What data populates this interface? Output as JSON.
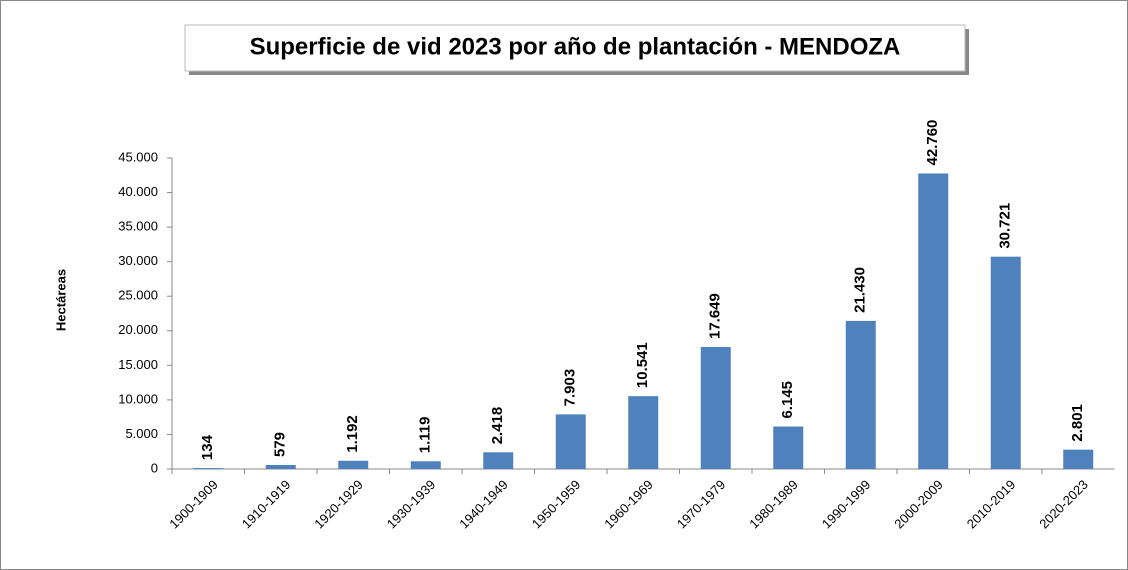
{
  "chart_data": {
    "type": "bar",
    "title": "Superficie de vid 2023 por año de plantación - MENDOZA",
    "y_label": "Hectáreas",
    "categories": [
      "1900-1909",
      "1910-1919",
      "1920-1929",
      "1930-1939",
      "1940-1949",
      "1950-1959",
      "1960-1969",
      "1970-1979",
      "1980-1989",
      "1990-1999",
      "2000-2009",
      "2010-2019",
      "2020-2023"
    ],
    "values": [
      134,
      579,
      1192,
      1119,
      2418,
      7903,
      10541,
      17649,
      6145,
      21430,
      42760,
      30721,
      2801
    ],
    "value_labels": [
      "134",
      "579",
      "1.192",
      "1.119",
      "2.418",
      "7.903",
      "10.541",
      "17.649",
      "6.145",
      "21.430",
      "42.760",
      "30.721",
      "2.801"
    ],
    "color": "#4f81bd",
    "ylim": [
      0,
      45000
    ],
    "yticks": [
      0,
      {
        "value": 5000,
        "label": "5.000"
      },
      {
        "value": 10000,
        "label": "10.000"
      },
      {
        "value": 15000,
        "label": "15.000"
      },
      {
        "value": 20000,
        "label": "20.000"
      },
      {
        "value": 25000,
        "label": "25.000"
      },
      {
        "value": 30000,
        "label": "30.000"
      },
      {
        "value": 35000,
        "label": "35.000"
      },
      {
        "value": 40000,
        "label": "40.000"
      },
      {
        "value": 45000,
        "label": "45.000"
      }
    ],
    "grid": false
  }
}
